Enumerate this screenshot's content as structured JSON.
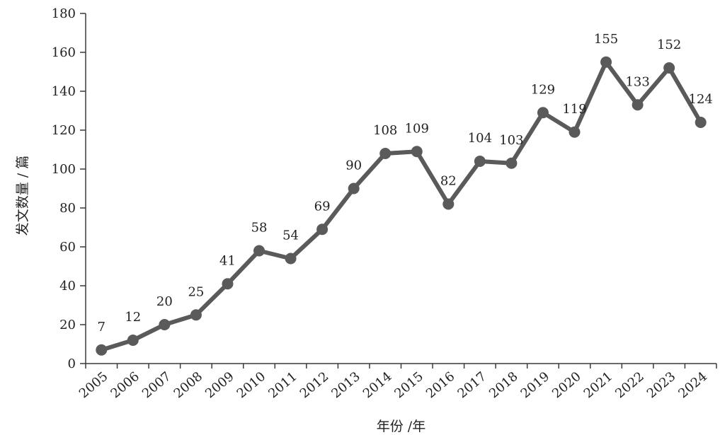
{
  "chart_data": {
    "type": "line",
    "title": "",
    "xlabel": "年份 /年",
    "ylabel": "发文数量 / 篇",
    "categories": [
      "2005",
      "2006",
      "2007",
      "2008",
      "2009",
      "2010",
      "2011",
      "2012",
      "2013",
      "2014",
      "2015",
      "2016",
      "2017",
      "2018",
      "2019",
      "2020",
      "2021",
      "2022",
      "2023",
      "2024"
    ],
    "series": [
      {
        "values": [
          7,
          12,
          20,
          25,
          41,
          58,
          54,
          69,
          90,
          108,
          109,
          82,
          104,
          103,
          129,
          119,
          155,
          133,
          152,
          124
        ]
      }
    ],
    "ylim": [
      0,
      180
    ],
    "yticks": [
      0,
      20,
      40,
      60,
      80,
      100,
      120,
      140,
      160,
      180
    ],
    "grid": false,
    "legend": "none",
    "colors": {
      "series": "#5a5a5a",
      "axis": "#3a3a3a",
      "text": "#222222"
    }
  }
}
